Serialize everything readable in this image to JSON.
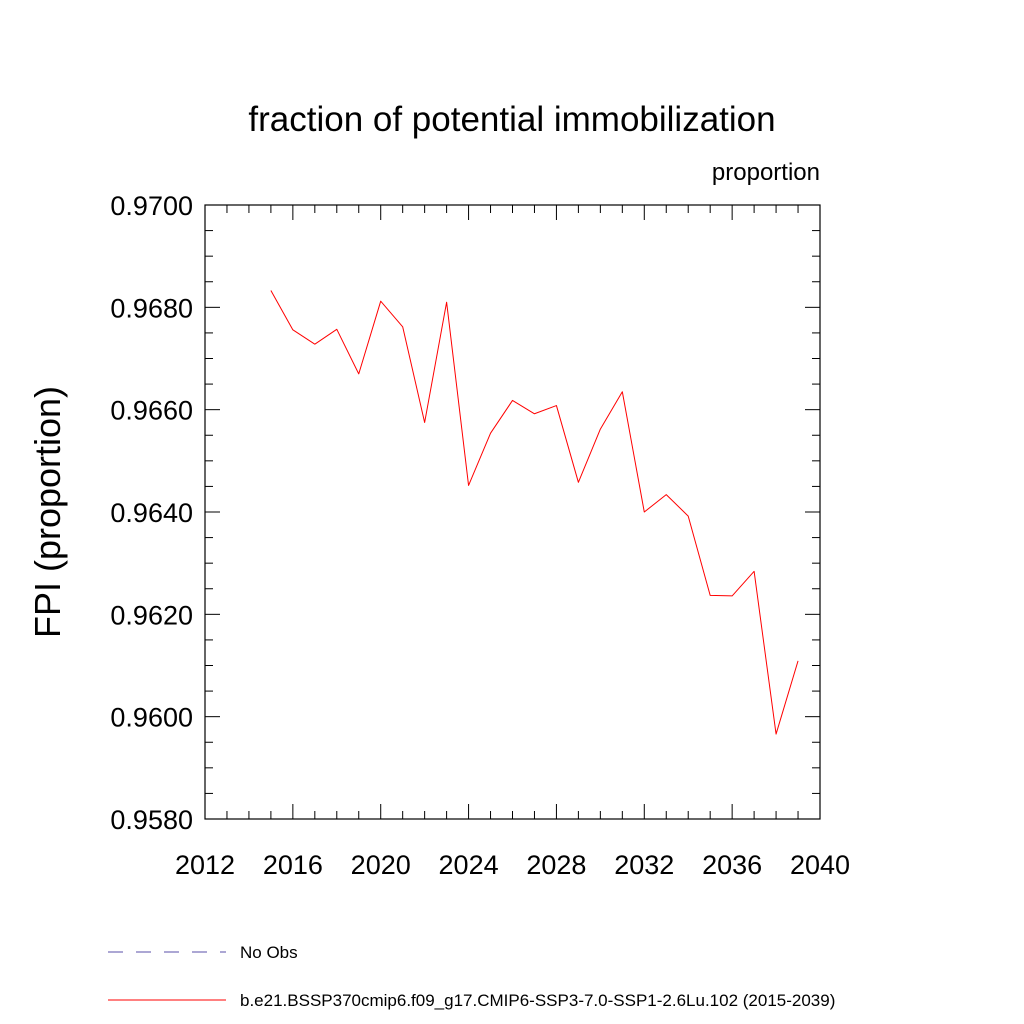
{
  "chart_data": {
    "type": "line",
    "title": "fraction of potential immobilization",
    "subtitle_right": "proportion",
    "ylabel": "FPI  (proportion)",
    "xlabel": "",
    "xlim": [
      2012,
      2040
    ],
    "ylim": [
      0.958,
      0.97
    ],
    "x_ticks": [
      2012,
      2016,
      2020,
      2024,
      2028,
      2032,
      2036,
      2040
    ],
    "x_tick_labels": [
      "2012",
      "2016",
      "2020",
      "2024",
      "2028",
      "2032",
      "2036",
      "2040"
    ],
    "y_ticks": [
      0.958,
      0.96,
      0.962,
      0.964,
      0.966,
      0.968,
      0.97
    ],
    "y_tick_labels": [
      "0.9580",
      "0.9600",
      "0.9620",
      "0.9640",
      "0.9660",
      "0.9680",
      "0.9700"
    ],
    "grid": false,
    "legend_position": "bottom",
    "series": [
      {
        "name": "b.e21.BSSP370cmip6.f09_g17.CMIP6-SSP3-7.0-SSP1-2.6Lu.102 (2015-2039)",
        "color": "#ff0000",
        "style": "solid",
        "x": [
          2015,
          2016,
          2017,
          2018,
          2019,
          2020,
          2021,
          2022,
          2023,
          2024,
          2025,
          2026,
          2027,
          2028,
          2029,
          2030,
          2031,
          2032,
          2033,
          2034,
          2035,
          2036,
          2037,
          2038,
          2039
        ],
        "y": [
          0.96833,
          0.96756,
          0.96728,
          0.96757,
          0.9667,
          0.96812,
          0.96762,
          0.96575,
          0.9681,
          0.96452,
          0.96554,
          0.96618,
          0.96592,
          0.96608,
          0.96458,
          0.96562,
          0.96635,
          0.964,
          0.96434,
          0.96392,
          0.96237,
          0.96236,
          0.96284,
          0.95966,
          0.96109
        ]
      }
    ],
    "legend": [
      {
        "label": "No Obs",
        "color": "#5a4fa8",
        "style": "dashed"
      },
      {
        "label": "b.e21.BSSP370cmip6.f09_g17.CMIP6-SSP3-7.0-SSP1-2.6Lu.102 (2015-2039)",
        "color": "#ff0000",
        "style": "solid"
      }
    ]
  }
}
